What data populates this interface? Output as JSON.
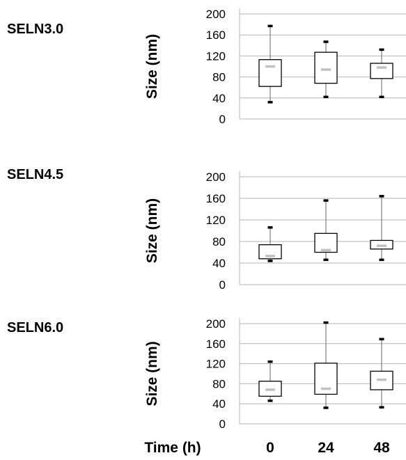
{
  "chart_data": [
    {
      "type": "box",
      "title": "SELN3.0",
      "ylabel": "Size (nm)",
      "ylim": [
        0,
        200
      ],
      "yticks": [
        0,
        40,
        80,
        120,
        160,
        200
      ],
      "categories": [
        "0",
        "24",
        "48"
      ],
      "boxes": [
        {
          "min": 32,
          "q1": 62,
          "median": 100,
          "q3": 113,
          "max": 177
        },
        {
          "min": 42,
          "q1": 68,
          "median": 94,
          "q3": 127,
          "max": 147
        },
        {
          "min": 42,
          "q1": 77,
          "median": 98,
          "q3": 106,
          "max": 132
        }
      ],
      "grid": true
    },
    {
      "type": "box",
      "title": "SELN4.5",
      "ylabel": "Size (nm)",
      "ylim": [
        0,
        200
      ],
      "yticks": [
        0,
        40,
        80,
        120,
        160,
        200
      ],
      "categories": [
        "0",
        "24",
        "48"
      ],
      "boxes": [
        {
          "min": 44,
          "q1": 48,
          "median": 53,
          "q3": 74,
          "max": 106
        },
        {
          "min": 46,
          "q1": 60,
          "median": 64,
          "q3": 95,
          "max": 156
        },
        {
          "min": 46,
          "q1": 66,
          "median": 72,
          "q3": 82,
          "max": 164
        }
      ],
      "grid": true
    },
    {
      "type": "box",
      "title": "SELN6.0",
      "ylabel": "Size (nm)",
      "ylim": [
        0,
        200
      ],
      "yticks": [
        0,
        40,
        80,
        120,
        160,
        200
      ],
      "categories": [
        "0",
        "24",
        "48"
      ],
      "boxes": [
        {
          "min": 46,
          "q1": 55,
          "median": 68,
          "q3": 85,
          "max": 124
        },
        {
          "min": 32,
          "q1": 59,
          "median": 70,
          "q3": 121,
          "max": 202
        },
        {
          "min": 33,
          "q1": 68,
          "median": 88,
          "q3": 105,
          "max": 169
        }
      ],
      "grid": true
    }
  ],
  "xaxis": {
    "label": "Time  (h)"
  },
  "colors": {
    "median": "#c0c0c0",
    "box": "#000000",
    "whisker": "#666666",
    "grid": "#b5b5b5"
  }
}
